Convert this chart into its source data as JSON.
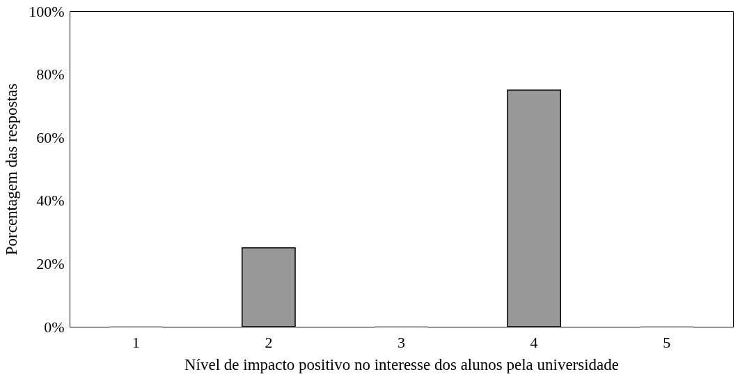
{
  "chart_data": {
    "type": "bar",
    "xlabel": "Nível de impacto positivo no interesse dos alunos pela universidade",
    "ylabel": "Porcentagem das respostas",
    "categories": [
      "1",
      "2",
      "3",
      "4",
      "5"
    ],
    "values": [
      0,
      25,
      0,
      75,
      0
    ],
    "color": "#999999",
    "ylim": [
      0,
      100
    ],
    "yticks": [
      {
        "value": 0,
        "label": "0%"
      },
      {
        "value": 20,
        "label": "20%"
      },
      {
        "value": 40,
        "label": "40%"
      },
      {
        "value": 60,
        "label": "60%"
      },
      {
        "value": 80,
        "label": "80%"
      },
      {
        "value": 100,
        "label": "100%"
      }
    ],
    "grid": false
  }
}
